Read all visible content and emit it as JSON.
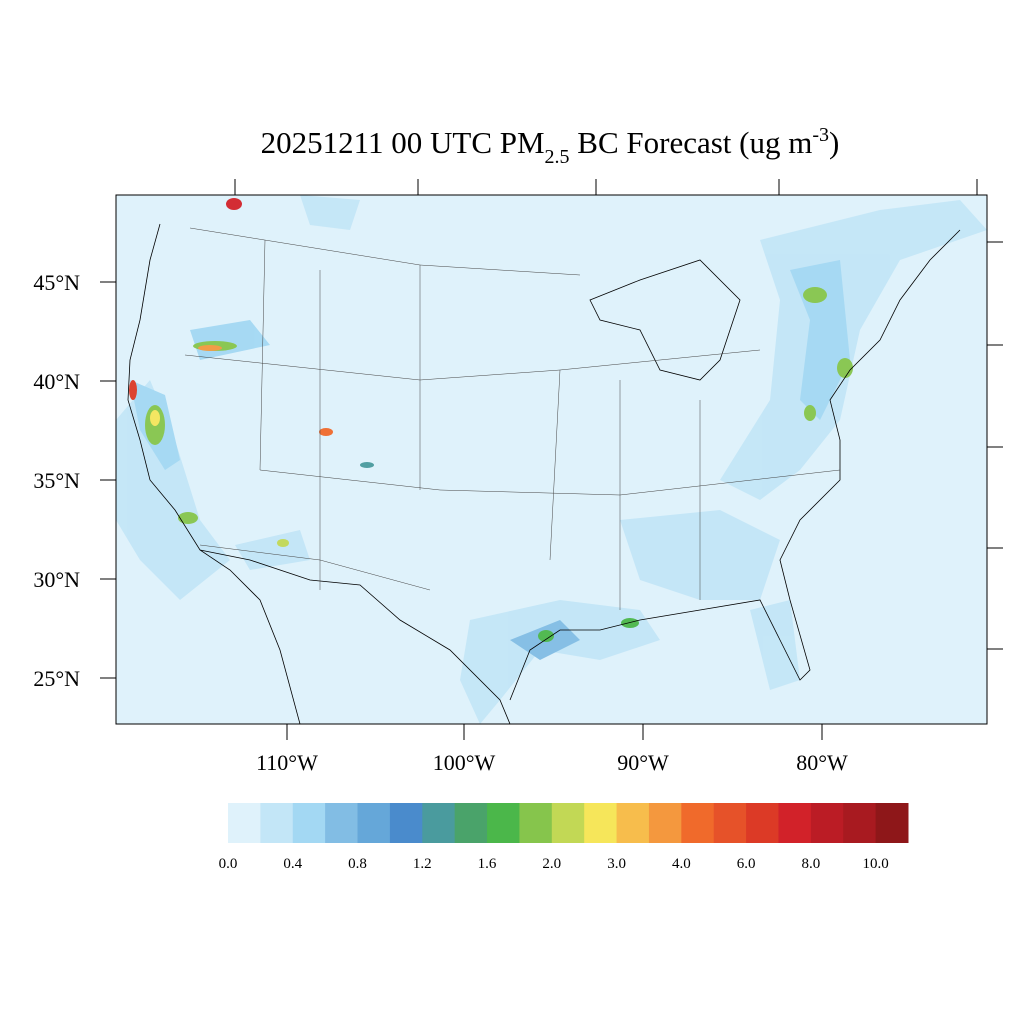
{
  "title": {
    "part1": "20251211 00 UTC PM",
    "sub": "2.5",
    "part2": " BC Forecast (ug m",
    "sup": "-3",
    "part3": ")"
  },
  "lat_labels": [
    "45°N",
    "40°N",
    "35°N",
    "30°N",
    "25°N"
  ],
  "lon_labels": [
    "110°W",
    "100°W",
    "90°W",
    "80°W"
  ],
  "colorbar": {
    "colors": [
      "#dff2fb",
      "#c3e6f7",
      "#a3d8f3",
      "#82bde4",
      "#65a7d9",
      "#4a8bcc",
      "#4a9b9e",
      "#4aa36a",
      "#4bb74a",
      "#86c54c",
      "#c2d855",
      "#f6e65a",
      "#f7bd4c",
      "#f4983e",
      "#f06a2b",
      "#e65229",
      "#dc3a26",
      "#d22229",
      "#bb1c25",
      "#a81a20",
      "#8e1719"
    ],
    "labels": [
      "0.0",
      "0.4",
      "0.8",
      "1.2",
      "1.6",
      "2.0",
      "3.0",
      "4.0",
      "6.0",
      "8.0",
      "10.0"
    ]
  }
}
